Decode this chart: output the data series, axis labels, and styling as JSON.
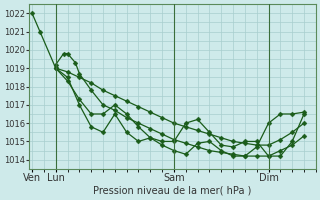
{
  "title": "Pression niveau de la mer( hPa )",
  "bg_color": "#ceeaea",
  "grid_color": "#a8cece",
  "line_color": "#1a5c1a",
  "ylim": [
    1013.5,
    1022.5
  ],
  "yticks": [
    1014,
    1015,
    1016,
    1017,
    1018,
    1019,
    1020,
    1021,
    1022
  ],
  "xlim": [
    -2,
    215
  ],
  "xtick_positions": [
    0,
    18,
    108,
    180
  ],
  "xtick_labels": [
    "Ven",
    "Lun",
    "Sam",
    "Dim"
  ],
  "vline_positions": [
    18,
    108,
    180
  ],
  "series1_x": [
    0,
    6,
    18,
    27,
    36,
    45,
    54,
    63,
    72,
    81,
    90,
    99,
    108,
    117,
    126,
    135,
    144,
    153,
    162,
    171,
    180,
    189,
    198,
    207
  ],
  "series1_y": [
    1022.0,
    1021.0,
    1019.0,
    1018.8,
    1018.5,
    1018.2,
    1017.8,
    1017.5,
    1017.2,
    1016.9,
    1016.6,
    1016.3,
    1016.0,
    1015.8,
    1015.6,
    1015.4,
    1015.2,
    1015.0,
    1014.9,
    1014.8,
    1014.8,
    1015.1,
    1015.5,
    1016.0
  ],
  "series2_x": [
    18,
    24,
    27,
    33,
    36,
    45,
    54,
    63,
    72,
    81,
    90,
    99,
    108,
    117,
    126,
    135,
    144,
    153,
    162,
    171,
    180,
    189,
    198,
    207
  ],
  "series2_y": [
    1019.2,
    1019.8,
    1019.8,
    1019.3,
    1018.7,
    1017.8,
    1017.0,
    1016.7,
    1016.3,
    1016.0,
    1015.7,
    1015.4,
    1015.1,
    1014.9,
    1014.7,
    1014.5,
    1014.4,
    1014.3,
    1014.2,
    1014.2,
    1014.2,
    1014.5,
    1014.8,
    1015.3
  ],
  "series3_x": [
    18,
    27,
    36,
    45,
    54,
    63,
    72,
    81,
    90,
    99,
    108,
    117,
    126,
    135,
    144,
    153,
    162,
    171,
    180,
    189,
    198,
    207
  ],
  "series3_y": [
    1019.0,
    1018.3,
    1017.3,
    1016.5,
    1016.5,
    1017.0,
    1016.5,
    1015.8,
    1015.2,
    1014.8,
    1014.5,
    1014.3,
    1014.9,
    1015.0,
    1014.5,
    1014.2,
    1014.2,
    1014.7,
    1016.0,
    1016.5,
    1016.5,
    1016.6
  ],
  "series4_x": [
    18,
    27,
    36,
    45,
    54,
    63,
    72,
    81,
    90,
    99,
    108,
    117,
    126,
    135,
    144,
    153,
    162,
    171,
    180,
    189,
    198,
    207
  ],
  "series4_y": [
    1019.0,
    1018.5,
    1017.0,
    1015.8,
    1015.5,
    1016.5,
    1015.5,
    1015.0,
    1015.2,
    1015.0,
    1015.0,
    1016.0,
    1016.2,
    1015.5,
    1014.8,
    1014.7,
    1015.0,
    1015.0,
    1014.2,
    1014.2,
    1015.0,
    1016.5
  ]
}
